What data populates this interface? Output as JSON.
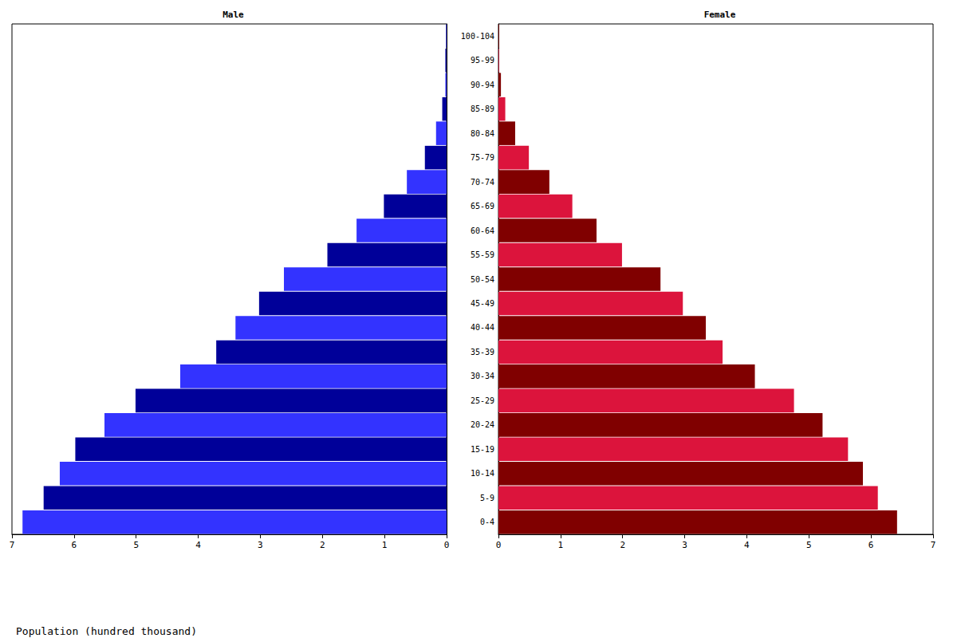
{
  "chart_data": [
    {
      "type": "bar",
      "title": "Male",
      "orientation": "horizontal",
      "grid": false,
      "tick_labels": "x",
      "xlabel": "Population (hundred thousand)",
      "categories": [
        "0-4",
        "5-9",
        "10-14",
        "15-19",
        "20-24",
        "25-29",
        "30-34",
        "35-39",
        "40-44",
        "45-49",
        "50-54",
        "55-59",
        "60-64",
        "65-69",
        "70-74",
        "75-79",
        "80-84",
        "85-89",
        "90-94",
        "95-99",
        "100-104"
      ],
      "values": [
        6.83,
        6.49,
        6.23,
        5.98,
        5.51,
        5.01,
        4.29,
        3.71,
        3.4,
        3.02,
        2.62,
        1.92,
        1.45,
        1.01,
        0.64,
        0.35,
        0.17,
        0.07,
        0.02,
        0.02,
        0.01
      ],
      "colors": [
        "#3333ff",
        "#000099",
        "#3333ff",
        "#000099",
        "#3333ff",
        "#000099",
        "#3333ff",
        "#000099",
        "#3333ff",
        "#000099",
        "#3333ff",
        "#000099",
        "#3333ff",
        "#000099",
        "#3333ff",
        "#000099",
        "#3333ff",
        "#000099",
        "#3333ff",
        "#000099",
        "#3333ff"
      ],
      "xlim": [
        0,
        7
      ],
      "xticks": [
        0,
        1,
        2,
        3,
        4,
        5,
        6,
        7
      ]
    },
    {
      "type": "bar",
      "title": "Female",
      "orientation": "horizontal",
      "grid": false,
      "categories": [
        "0-4",
        "5-9",
        "10-14",
        "15-19",
        "20-24",
        "25-29",
        "30-34",
        "35-39",
        "40-44",
        "45-49",
        "50-54",
        "55-59",
        "60-64",
        "65-69",
        "70-74",
        "75-79",
        "80-84",
        "85-89",
        "90-94",
        "95-99",
        "100-104"
      ],
      "values": [
        6.42,
        6.11,
        5.87,
        5.63,
        5.22,
        4.76,
        4.13,
        3.61,
        3.34,
        2.97,
        2.61,
        1.99,
        1.58,
        1.19,
        0.82,
        0.49,
        0.27,
        0.11,
        0.04,
        0.01,
        0.01
      ],
      "colors": [
        "#800000",
        "#dc143c",
        "#800000",
        "#dc143c",
        "#800000",
        "#dc143c",
        "#800000",
        "#dc143c",
        "#800000",
        "#dc143c",
        "#800000",
        "#dc143c",
        "#800000",
        "#dc143c",
        "#800000",
        "#dc143c",
        "#800000",
        "#dc143c",
        "#800000",
        "#dc143c",
        "#800000"
      ],
      "xlim": [
        0,
        7
      ],
      "xticks": [
        0,
        1,
        2,
        3,
        4,
        5,
        6,
        7
      ]
    }
  ]
}
